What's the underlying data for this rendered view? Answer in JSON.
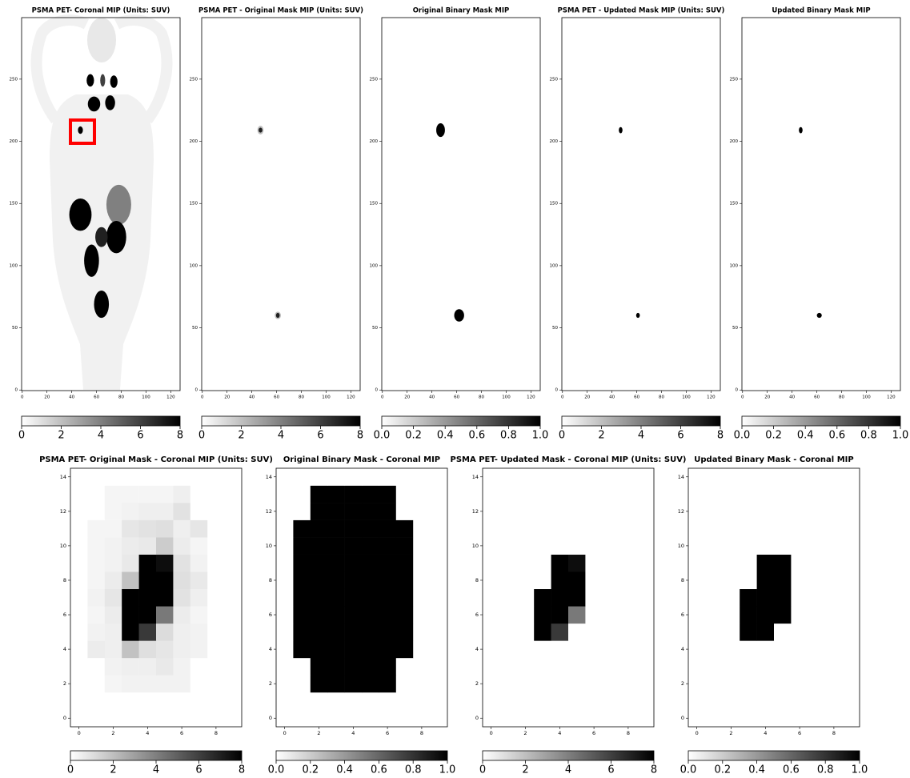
{
  "chart_data": [
    {
      "type": "image",
      "title": "PSMA PET- Coronal MIP (Units: SUV)",
      "xlim": [
        -0.5,
        127.5
      ],
      "ylim": [
        -0.5,
        299.5
      ],
      "xticks": [
        0,
        20,
        40,
        60,
        80,
        100,
        120
      ],
      "yticks": [
        0,
        50,
        100,
        150,
        200,
        250
      ],
      "colormap": [
        "#ffffff",
        "#000000"
      ],
      "clim": [
        0,
        8
      ],
      "cbar_ticks": [
        0,
        2,
        4,
        6,
        8
      ],
      "blobs": [
        {
          "x": 55,
          "y": 249,
          "rx": 3,
          "ry": 5,
          "value": 8
        },
        {
          "x": 74,
          "y": 248,
          "rx": 3,
          "ry": 5,
          "value": 8
        },
        {
          "x": 65,
          "y": 249,
          "rx": 2,
          "ry": 5,
          "value": 6
        },
        {
          "x": 58,
          "y": 230,
          "rx": 5,
          "ry": 6,
          "value": 8
        },
        {
          "x": 71,
          "y": 231,
          "rx": 4,
          "ry": 6,
          "value": 8
        },
        {
          "x": 47,
          "y": 209,
          "rx": 2,
          "ry": 3,
          "value": 8
        },
        {
          "x": 78,
          "y": 149,
          "rx": 10,
          "ry": 16,
          "value": 4
        },
        {
          "x": 47,
          "y": 141,
          "rx": 9,
          "ry": 13,
          "value": 8
        },
        {
          "x": 76,
          "y": 123,
          "rx": 8,
          "ry": 13,
          "value": 8
        },
        {
          "x": 56,
          "y": 104,
          "rx": 6,
          "ry": 13,
          "value": 8
        },
        {
          "x": 64,
          "y": 123,
          "rx": 5,
          "ry": 8,
          "value": 7
        },
        {
          "x": 64,
          "y": 69,
          "rx": 6,
          "ry": 11,
          "value": 8
        }
      ]
    },
    {
      "type": "image",
      "title": "PSMA PET - Original Mask MIP (Units: SUV)",
      "xlim": [
        -0.5,
        127.5
      ],
      "ylim": [
        -0.5,
        299.5
      ],
      "xticks": [
        0,
        20,
        40,
        60,
        80,
        100,
        120
      ],
      "yticks": [
        0,
        50,
        100,
        150,
        200,
        250
      ],
      "colormap": [
        "#ffffff",
        "#000000"
      ],
      "clim": [
        0,
        8
      ],
      "cbar_ticks": [
        0,
        2,
        4,
        6,
        8
      ],
      "blobs": [
        {
          "x": 47,
          "y": 209,
          "rx": 2.5,
          "ry": 3.5,
          "value": 2
        },
        {
          "x": 47,
          "y": 209,
          "rx": 1.5,
          "ry": 2,
          "value": 7
        },
        {
          "x": 61,
          "y": 60,
          "rx": 2.5,
          "ry": 3,
          "value": 2
        },
        {
          "x": 61,
          "y": 60,
          "rx": 1.5,
          "ry": 2,
          "value": 7
        }
      ]
    },
    {
      "type": "image",
      "title": "Original Binary Mask MIP",
      "xlim": [
        -0.5,
        127.5
      ],
      "ylim": [
        -0.5,
        299.5
      ],
      "xticks": [
        0,
        20,
        40,
        60,
        80,
        100,
        120
      ],
      "yticks": [
        0,
        50,
        100,
        150,
        200,
        250
      ],
      "colormap": [
        "#ffffff",
        "#000000"
      ],
      "clim": [
        0,
        1
      ],
      "cbar_ticks": [
        {
          "value": 0,
          "label": "0.0"
        },
        0.2,
        0.4,
        0.6,
        0.8,
        {
          "value": 1,
          "label": "1.0"
        }
      ],
      "blobs": [
        {
          "x": 47,
          "y": 209,
          "rx": 3.5,
          "ry": 5.5,
          "value": 1
        },
        {
          "x": 62,
          "y": 60,
          "rx": 4,
          "ry": 5,
          "value": 1
        }
      ]
    },
    {
      "type": "image",
      "title": "PSMA PET - Updated Mask MIP (Units: SUV)",
      "xlim": [
        -0.5,
        127.5
      ],
      "ylim": [
        -0.5,
        299.5
      ],
      "xticks": [
        0,
        20,
        40,
        60,
        80,
        100,
        120
      ],
      "yticks": [
        0,
        50,
        100,
        150,
        200,
        250
      ],
      "colormap": [
        "#ffffff",
        "#000000"
      ],
      "clim": [
        0,
        8
      ],
      "cbar_ticks": [
        0,
        2,
        4,
        6,
        8
      ],
      "blobs": [
        {
          "x": 47,
          "y": 209,
          "rx": 1.5,
          "ry": 2.5,
          "value": 8
        },
        {
          "x": 61,
          "y": 60,
          "rx": 1.5,
          "ry": 2,
          "value": 8
        }
      ]
    },
    {
      "type": "image",
      "title": "Updated Binary Mask MIP",
      "xlim": [
        -0.5,
        127.5
      ],
      "ylim": [
        -0.5,
        299.5
      ],
      "xticks": [
        0,
        20,
        40,
        60,
        80,
        100,
        120
      ],
      "yticks": [
        0,
        50,
        100,
        150,
        200,
        250
      ],
      "colormap": [
        "#ffffff",
        "#000000"
      ],
      "clim": [
        0,
        1
      ],
      "cbar_ticks": [
        {
          "value": 0,
          "label": "0.0"
        },
        0.2,
        0.4,
        0.6,
        0.8,
        {
          "value": 1,
          "label": "1.0"
        }
      ],
      "blobs": [
        {
          "x": 47,
          "y": 209,
          "rx": 1.5,
          "ry": 2.5,
          "value": 1
        },
        {
          "x": 62,
          "y": 60,
          "rx": 2,
          "ry": 2,
          "value": 1
        }
      ]
    },
    {
      "type": "heatmap",
      "title": "PSMA PET- Original Mask - Coronal MIP (Units: SUV)",
      "xlim": [
        -0.5,
        9.5
      ],
      "ylim": [
        -0.5,
        14.5
      ],
      "xticks": [
        0,
        2,
        4,
        6,
        8
      ],
      "yticks": [
        0,
        2,
        4,
        6,
        8,
        10,
        12,
        14
      ],
      "colormap": [
        "#ffffff",
        "#000000"
      ],
      "clim": [
        0,
        8
      ],
      "cbar_ticks": [
        0,
        2,
        4,
        6,
        8
      ],
      "z": [
        [
          0,
          0,
          0,
          0,
          0,
          0,
          0,
          0,
          0,
          0
        ],
        [
          0,
          0,
          0,
          0,
          0,
          0,
          0,
          0,
          0,
          0
        ],
        [
          0,
          0,
          0.3,
          0.4,
          0.4,
          0.4,
          0.4,
          0,
          0,
          0
        ],
        [
          0,
          0,
          0.4,
          0.5,
          0.5,
          0.7,
          0.4,
          0,
          0,
          0
        ],
        [
          0,
          0.6,
          0.5,
          1.9,
          1,
          0.8,
          0.5,
          0.4,
          0,
          0
        ],
        [
          0,
          0.4,
          0.5,
          8,
          6.2,
          1.1,
          0.5,
          0.4,
          0,
          0
        ],
        [
          0,
          0.3,
          0.6,
          8,
          8,
          4.2,
          0.6,
          0.3,
          0,
          0
        ],
        [
          0,
          0.4,
          0.8,
          8,
          8,
          8,
          0.9,
          0.5,
          0,
          0
        ],
        [
          0,
          0.3,
          0.6,
          1.9,
          8,
          8,
          1,
          0.7,
          0,
          0
        ],
        [
          0,
          0.3,
          0.4,
          0.7,
          8,
          7.6,
          0.9,
          0.4,
          0,
          0
        ],
        [
          0,
          0.3,
          0.4,
          0.6,
          0.7,
          1.6,
          0.6,
          0.3,
          0,
          0
        ],
        [
          0,
          0.3,
          0.3,
          0.8,
          0.9,
          1,
          0.5,
          0.8,
          0,
          0
        ],
        [
          0,
          0,
          0.3,
          0.4,
          0.5,
          0.5,
          0.9,
          0,
          0,
          0
        ],
        [
          0,
          0,
          0.3,
          0.3,
          0.3,
          0.3,
          0.5,
          0,
          0,
          0
        ],
        [
          0,
          0,
          0,
          0,
          0,
          0,
          0,
          0,
          0,
          0
        ]
      ]
    },
    {
      "type": "heatmap",
      "title": "Original Binary Mask - Coronal MIP",
      "xlim": [
        -0.5,
        9.5
      ],
      "ylim": [
        -0.5,
        14.5
      ],
      "xticks": [
        0,
        2,
        4,
        6,
        8
      ],
      "yticks": [
        0,
        2,
        4,
        6,
        8,
        10,
        12,
        14
      ],
      "colormap": [
        "#ffffff",
        "#000000"
      ],
      "clim": [
        0,
        1
      ],
      "cbar_ticks": [
        {
          "value": 0,
          "label": "0.0"
        },
        0.2,
        0.4,
        0.6,
        0.8,
        {
          "value": 1,
          "label": "1.0"
        }
      ],
      "z": [
        [
          0,
          0,
          0,
          0,
          0,
          0,
          0,
          0,
          0,
          0
        ],
        [
          0,
          0,
          0,
          0,
          0,
          0,
          0,
          0,
          0,
          0
        ],
        [
          0,
          0,
          1,
          1,
          1,
          1,
          1,
          0,
          0,
          0
        ],
        [
          0,
          0,
          1,
          1,
          1,
          1,
          1,
          0,
          0,
          0
        ],
        [
          0,
          1,
          1,
          1,
          1,
          1,
          1,
          1,
          0,
          0
        ],
        [
          0,
          1,
          1,
          1,
          1,
          1,
          1,
          1,
          0,
          0
        ],
        [
          0,
          1,
          1,
          1,
          1,
          1,
          1,
          1,
          0,
          0
        ],
        [
          0,
          1,
          1,
          1,
          1,
          1,
          1,
          1,
          0,
          0
        ],
        [
          0,
          1,
          1,
          1,
          1,
          1,
          1,
          1,
          0,
          0
        ],
        [
          0,
          1,
          1,
          1,
          1,
          1,
          1,
          1,
          0,
          0
        ],
        [
          0,
          1,
          1,
          1,
          1,
          1,
          1,
          1,
          0,
          0
        ],
        [
          0,
          1,
          1,
          1,
          1,
          1,
          1,
          1,
          0,
          0
        ],
        [
          0,
          0,
          1,
          1,
          1,
          1,
          1,
          0,
          0,
          0
        ],
        [
          0,
          0,
          1,
          1,
          1,
          1,
          1,
          0,
          0,
          0
        ],
        [
          0,
          0,
          0,
          0,
          0,
          0,
          0,
          0,
          0,
          0
        ]
      ]
    },
    {
      "type": "heatmap",
      "title": "PSMA PET- Updated Mask - Coronal MIP (Units: SUV)",
      "xlim": [
        -0.5,
        9.5
      ],
      "ylim": [
        -0.5,
        14.5
      ],
      "xticks": [
        0,
        2,
        4,
        6,
        8
      ],
      "yticks": [
        0,
        2,
        4,
        6,
        8,
        10,
        12,
        14
      ],
      "colormap": [
        "#ffffff",
        "#000000"
      ],
      "clim": [
        0,
        8
      ],
      "cbar_ticks": [
        0,
        2,
        4,
        6,
        8
      ],
      "z": [
        [
          0,
          0,
          0,
          0,
          0,
          0,
          0,
          0,
          0,
          0
        ],
        [
          0,
          0,
          0,
          0,
          0,
          0,
          0,
          0,
          0,
          0
        ],
        [
          0,
          0,
          0,
          0,
          0,
          0,
          0,
          0,
          0,
          0
        ],
        [
          0,
          0,
          0,
          0,
          0,
          0,
          0,
          0,
          0,
          0
        ],
        [
          0,
          0,
          0,
          0,
          0,
          0,
          0,
          0,
          0,
          0
        ],
        [
          0,
          0,
          0,
          8,
          6.2,
          0,
          0,
          0,
          0,
          0
        ],
        [
          0,
          0,
          0,
          8,
          8,
          4.2,
          0,
          0,
          0,
          0
        ],
        [
          0,
          0,
          0,
          8,
          8,
          8,
          0,
          0,
          0,
          0
        ],
        [
          0,
          0,
          0,
          0,
          8,
          8,
          0,
          0,
          0,
          0
        ],
        [
          0,
          0,
          0,
          0,
          8,
          7.6,
          0,
          0,
          0,
          0
        ],
        [
          0,
          0,
          0,
          0,
          0,
          0,
          0,
          0,
          0,
          0
        ],
        [
          0,
          0,
          0,
          0,
          0,
          0,
          0,
          0,
          0,
          0
        ],
        [
          0,
          0,
          0,
          0,
          0,
          0,
          0,
          0,
          0,
          0
        ],
        [
          0,
          0,
          0,
          0,
          0,
          0,
          0,
          0,
          0,
          0
        ],
        [
          0,
          0,
          0,
          0,
          0,
          0,
          0,
          0,
          0,
          0
        ]
      ]
    },
    {
      "type": "heatmap",
      "title": "Updated Binary Mask - Coronal MIP",
      "xlim": [
        -0.5,
        9.5
      ],
      "ylim": [
        -0.5,
        14.5
      ],
      "xticks": [
        0,
        2,
        4,
        6,
        8
      ],
      "yticks": [
        0,
        2,
        4,
        6,
        8,
        10,
        12,
        14
      ],
      "colormap": [
        "#ffffff",
        "#000000"
      ],
      "clim": [
        0,
        1
      ],
      "cbar_ticks": [
        {
          "value": 0,
          "label": "0.0"
        },
        0.2,
        0.4,
        0.6,
        0.8,
        {
          "value": 1,
          "label": "1.0"
        }
      ],
      "z": [
        [
          0,
          0,
          0,
          0,
          0,
          0,
          0,
          0,
          0,
          0
        ],
        [
          0,
          0,
          0,
          0,
          0,
          0,
          0,
          0,
          0,
          0
        ],
        [
          0,
          0,
          0,
          0,
          0,
          0,
          0,
          0,
          0,
          0
        ],
        [
          0,
          0,
          0,
          0,
          0,
          0,
          0,
          0,
          0,
          0
        ],
        [
          0,
          0,
          0,
          0,
          0,
          0,
          0,
          0,
          0,
          0
        ],
        [
          0,
          0,
          0,
          1,
          1,
          0,
          0,
          0,
          0,
          0
        ],
        [
          0,
          0,
          0,
          1,
          1,
          1,
          0,
          0,
          0,
          0
        ],
        [
          0,
          0,
          0,
          1,
          1,
          1,
          0,
          0,
          0,
          0
        ],
        [
          0,
          0,
          0,
          0,
          1,
          1,
          0,
          0,
          0,
          0
        ],
        [
          0,
          0,
          0,
          0,
          1,
          1,
          0,
          0,
          0,
          0
        ],
        [
          0,
          0,
          0,
          0,
          0,
          0,
          0,
          0,
          0,
          0
        ],
        [
          0,
          0,
          0,
          0,
          0,
          0,
          0,
          0,
          0,
          0
        ],
        [
          0,
          0,
          0,
          0,
          0,
          0,
          0,
          0,
          0,
          0
        ],
        [
          0,
          0,
          0,
          0,
          0,
          0,
          0,
          0,
          0,
          0
        ],
        [
          0,
          0,
          0,
          0,
          0,
          0,
          0,
          0,
          0,
          0
        ]
      ]
    }
  ]
}
